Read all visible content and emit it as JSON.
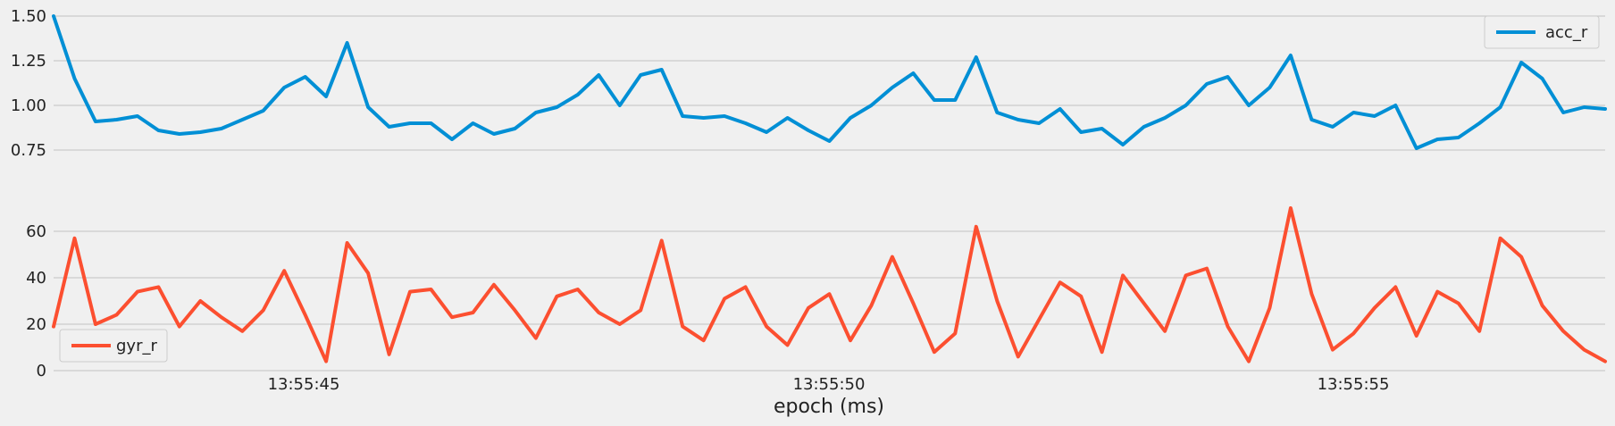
{
  "chart_data": [
    {
      "type": "line",
      "series": [
        {
          "name": "acc_r",
          "color": "#008fd5",
          "values": [
            1.5,
            1.15,
            0.91,
            0.92,
            0.94,
            0.86,
            0.84,
            0.85,
            0.87,
            0.92,
            0.97,
            1.1,
            1.16,
            1.05,
            1.35,
            0.99,
            0.88,
            0.9,
            0.9,
            0.81,
            0.9,
            0.84,
            0.87,
            0.96,
            0.99,
            1.06,
            1.17,
            1.0,
            1.17,
            1.2,
            0.94,
            0.93,
            0.94,
            0.9,
            0.85,
            0.93,
            0.86,
            0.8,
            0.93,
            1.0,
            1.1,
            1.18,
            1.03,
            1.03,
            1.27,
            0.96,
            0.92,
            0.9,
            0.98,
            0.85,
            0.87,
            0.78,
            0.88,
            0.93,
            1.0,
            1.12,
            1.16,
            1.0,
            1.1,
            1.28,
            0.92,
            0.88,
            0.96,
            0.94,
            1.0,
            0.76,
            0.81,
            0.82,
            0.9,
            0.99,
            1.24,
            1.15,
            0.96,
            0.99,
            0.98
          ]
        }
      ],
      "yticks": [
        "0.75",
        "1.00",
        "1.25",
        "1.50"
      ],
      "ylim": [
        0.64,
        1.5
      ],
      "legend": "top-right",
      "grid": true
    },
    {
      "type": "line",
      "series": [
        {
          "name": "gyr_r",
          "color": "#fc4f30",
          "values": [
            19,
            57,
            20,
            24,
            34,
            36,
            19,
            30,
            23,
            17,
            26,
            43,
            24,
            4,
            55,
            42,
            7,
            34,
            35,
            23,
            25,
            37,
            26,
            14,
            32,
            35,
            25,
            20,
            26,
            56,
            19,
            13,
            31,
            36,
            19,
            11,
            27,
            33,
            13,
            28,
            49,
            29,
            8,
            16,
            62,
            30,
            6,
            22,
            38,
            32,
            8,
            41,
            29,
            17,
            41,
            44,
            19,
            4,
            27,
            70,
            33,
            9,
            16,
            27,
            36,
            15,
            34,
            29,
            17,
            57,
            49,
            28,
            17,
            9,
            4
          ]
        }
      ],
      "yticks": [
        "0",
        "20",
        "40",
        "60"
      ],
      "ylim": [
        0,
        75
      ],
      "legend": "bottom-left",
      "grid": true
    }
  ],
  "x_axis": {
    "label": "epoch (ms)",
    "ticks": [
      "13:55:45",
      "13:55:50",
      "13:55:55"
    ]
  }
}
